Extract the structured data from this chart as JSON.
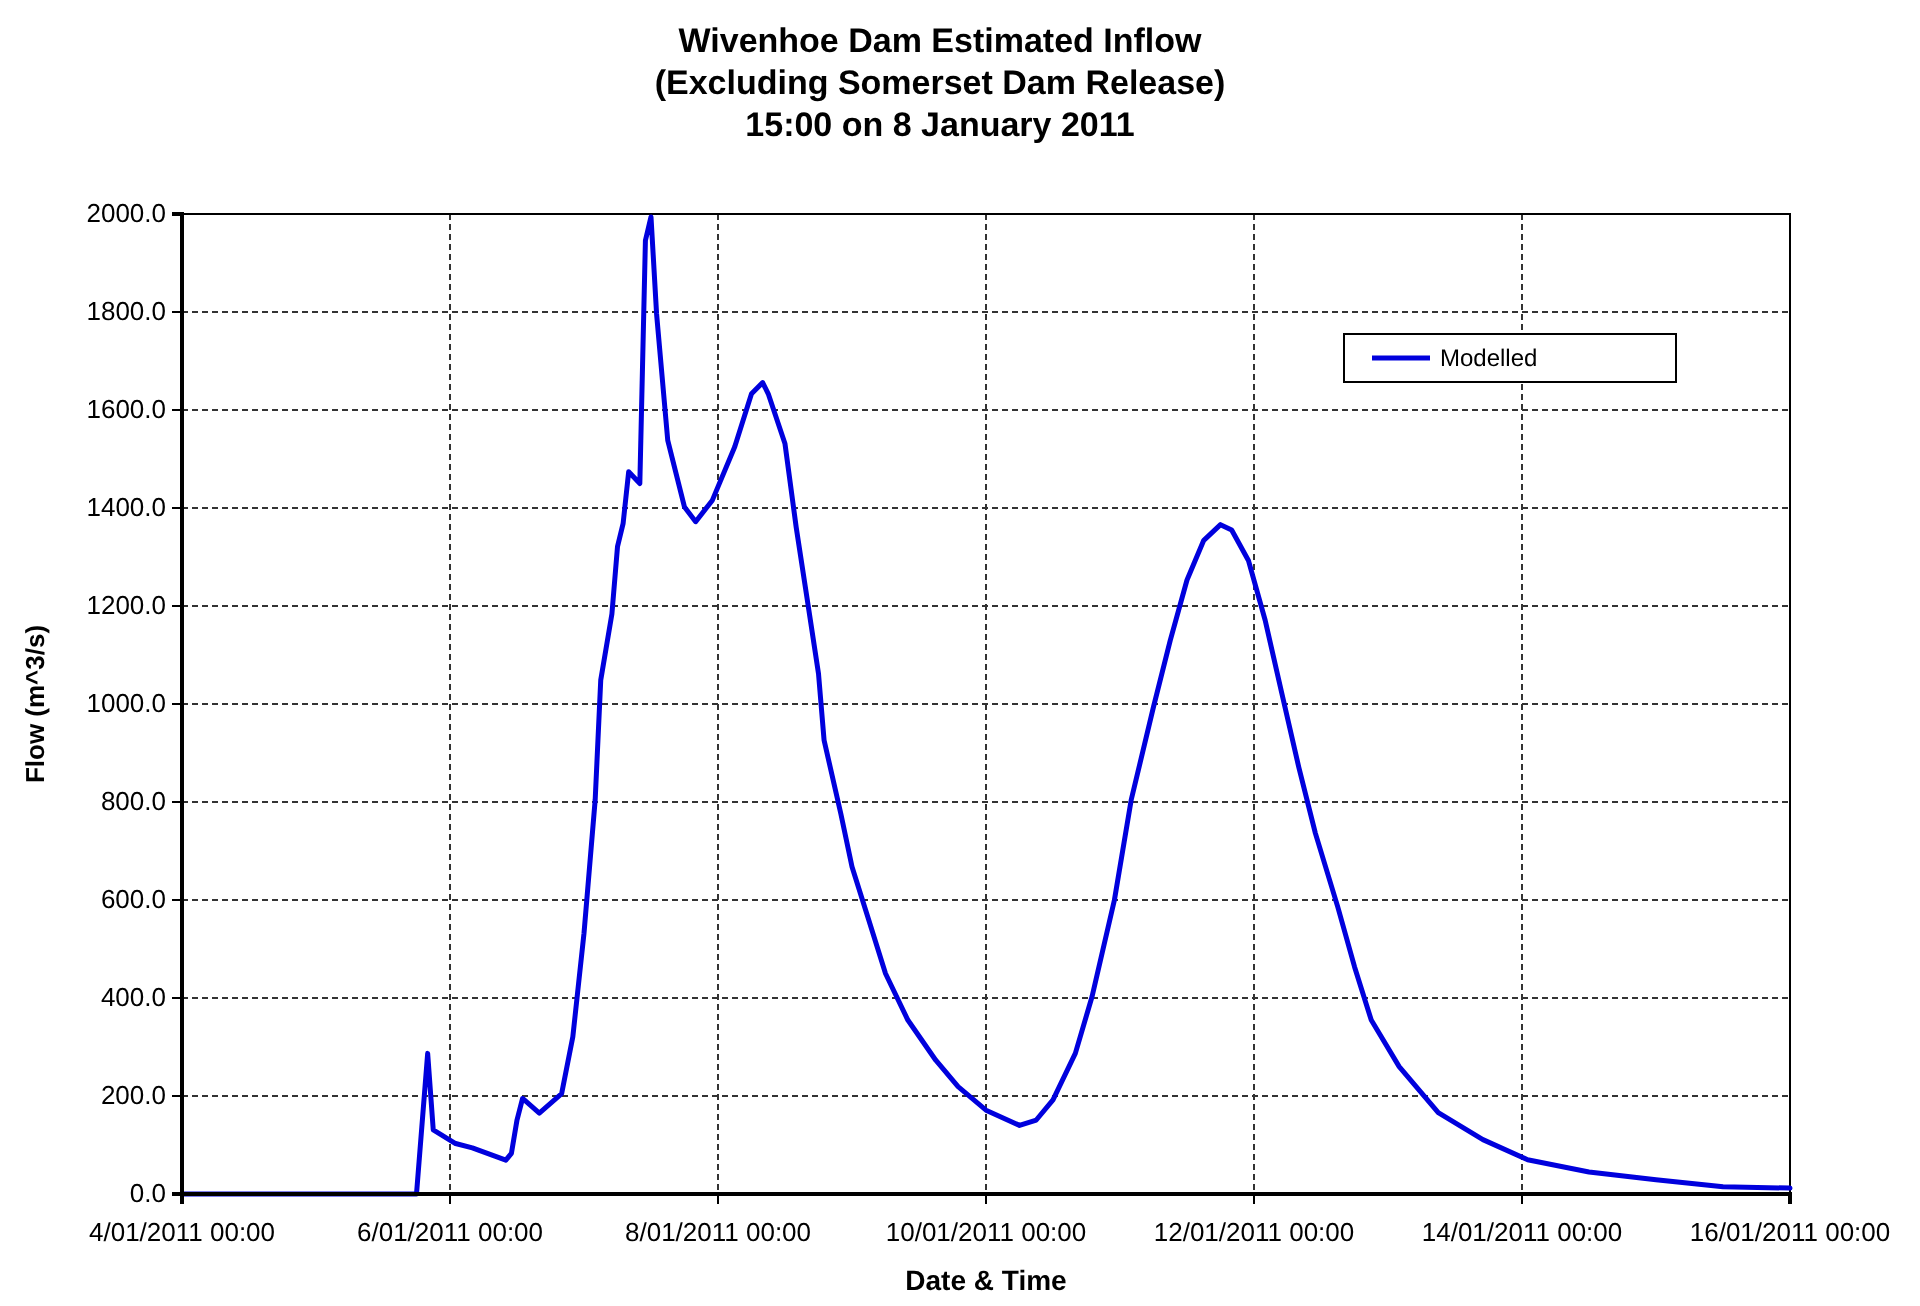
{
  "chart_data": {
    "type": "line",
    "title": "Wivenhoe Dam Estimated Inflow\n(Excluding Somerset Dam Release)",
    "subtitle": "15:00 on 8 January 2011",
    "xlabel": "Date & Time",
    "ylabel": "Flow (m^3/s)",
    "x": [
      "2011-01-04T00:00",
      "2011-01-05T16:00",
      "2011-01-05T18:00",
      "2011-01-05T20:00",
      "2011-01-05T21:00",
      "2011-01-06T01:00",
      "2011-01-06T04:00",
      "2011-01-06T10:00",
      "2011-01-06T11:00",
      "2011-01-06T12:00",
      "2011-01-06T13:00",
      "2011-01-06T16:00",
      "2011-01-06T20:00",
      "2011-01-06T22:00",
      "2011-01-07T00:00",
      "2011-01-07T02:00",
      "2011-01-07T03:00",
      "2011-01-07T05:00",
      "2011-01-07T06:00",
      "2011-01-07T07:00",
      "2011-01-07T08:00",
      "2011-01-07T10:00",
      "2011-01-07T11:00",
      "2011-01-07T12:00",
      "2011-01-07T13:00",
      "2011-01-07T15:00",
      "2011-01-07T18:00",
      "2011-01-07T20:00",
      "2011-01-07T23:00",
      "2011-01-08T03:00",
      "2011-01-08T06:00",
      "2011-01-08T08:00",
      "2011-01-08T09:00",
      "2011-01-08T12:00",
      "2011-01-08T14:00",
      "2011-01-08T16:00",
      "2011-01-08T18:00",
      "2011-01-08T19:00",
      "2011-01-08T22:00",
      "2011-01-09T00:00",
      "2011-01-09T03:00",
      "2011-01-09T06:00",
      "2011-01-09T10:00",
      "2011-01-09T15:00",
      "2011-01-09T19:00",
      "2011-01-10T00:00",
      "2011-01-10T06:00",
      "2011-01-10T09:00",
      "2011-01-10T12:00",
      "2011-01-10T16:00",
      "2011-01-10T19:00",
      "2011-01-10T23:00",
      "2011-01-11T02:00",
      "2011-01-11T06:00",
      "2011-01-11T09:00",
      "2011-01-11T12:00",
      "2011-01-11T15:00",
      "2011-01-11T18:00",
      "2011-01-11T20:00",
      "2011-01-11T23:00",
      "2011-01-12T02:00",
      "2011-01-12T05:00",
      "2011-01-12T08:00",
      "2011-01-12T11:00",
      "2011-01-12T15:00",
      "2011-01-12T18:00",
      "2011-01-12T21:00",
      "2011-01-13T02:00",
      "2011-01-13T09:00",
      "2011-01-13T17:00",
      "2011-01-14T01:00",
      "2011-01-14T12:00",
      "2011-01-15T00:00",
      "2011-01-15T12:00",
      "2011-01-16T00:00"
    ],
    "series": [
      {
        "name": "Modelled",
        "color": "#0000dd",
        "values": [
          0,
          0,
          0,
          287,
          131,
          103,
          94,
          69,
          83,
          151,
          195,
          165,
          205,
          321,
          532,
          804,
          1049,
          1184,
          1321,
          1368,
          1474,
          1450,
          1946,
          1994,
          1796,
          1538,
          1402,
          1372,
          1416,
          1525,
          1633,
          1656,
          1633,
          1531,
          1361,
          1212,
          1062,
          926,
          776,
          668,
          559,
          450,
          355,
          273,
          219,
          171,
          140,
          151,
          192,
          287,
          403,
          600,
          804,
          994,
          1130,
          1253,
          1334,
          1366,
          1355,
          1293,
          1171,
          1021,
          872,
          736,
          586,
          464,
          355,
          260,
          166,
          111,
          70,
          45,
          29,
          15,
          12
        ]
      }
    ],
    "xlim": [
      "2011-01-04",
      "2011-01-16"
    ],
    "xticks": [
      {
        "value": "2011-01-04",
        "label": "4/01/2011 00:00"
      },
      {
        "value": "2011-01-06",
        "label": "6/01/2011 00:00"
      },
      {
        "value": "2011-01-08",
        "label": "8/01/2011 00:00"
      },
      {
        "value": "2011-01-10",
        "label": "10/01/2011 00:00"
      },
      {
        "value": "2011-01-12",
        "label": "12/01/2011 00:00"
      },
      {
        "value": "2011-01-14",
        "label": "14/01/2011 00:00"
      },
      {
        "value": "2011-01-16",
        "label": "16/01/2011 00:00"
      }
    ],
    "ylim": [
      0,
      2000
    ],
    "yticks": [
      {
        "value": 0,
        "label": "0.0"
      },
      {
        "value": 200,
        "label": "200.0"
      },
      {
        "value": 400,
        "label": "400.0"
      },
      {
        "value": 600,
        "label": "600.0"
      },
      {
        "value": 800,
        "label": "800.0"
      },
      {
        "value": 1000,
        "label": "1000.0"
      },
      {
        "value": 1200,
        "label": "1200.0"
      },
      {
        "value": 1400,
        "label": "1400.0"
      },
      {
        "value": 1600,
        "label": "1600.0"
      },
      {
        "value": 1800,
        "label": "1800.0"
      },
      {
        "value": 2000,
        "label": "2000.0"
      }
    ],
    "grid": true,
    "legend": "top right",
    "marker": "none",
    "line_style": "solid"
  }
}
